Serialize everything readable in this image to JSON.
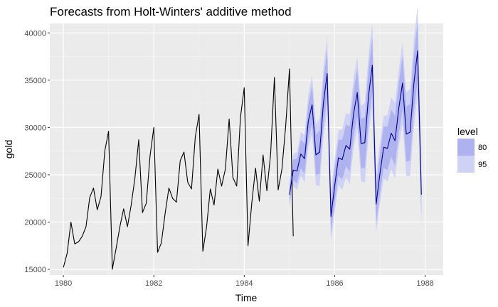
{
  "chart_data": {
    "type": "line",
    "title": "Forecasts from Holt-Winters' additive method",
    "xlabel": "Time",
    "ylabel": "gold",
    "xlim": [
      1979.7,
      1988.4
    ],
    "ylim": [
      14400,
      41000
    ],
    "x_ticks": [
      1980,
      1982,
      1984,
      1986,
      1988
    ],
    "y_ticks": [
      15000,
      20000,
      25000,
      30000,
      35000,
      40000
    ],
    "x_tick_labels": [
      "1980",
      "1982",
      "1984",
      "1986",
      "1988"
    ],
    "y_tick_labels": [
      "15000",
      "20000",
      "25000",
      "30000",
      "35000",
      "40000"
    ],
    "grid": true,
    "legend": {
      "title": "level",
      "position": "right",
      "entries": [
        {
          "label": "80",
          "color": "#aeb3f0"
        },
        {
          "label": "95",
          "color": "#cfd2f5"
        }
      ]
    },
    "colors": {
      "panel": "#ebebeb",
      "grid_major": "#ffffff",
      "observed_line": "#000000",
      "forecast_line": "#00008b",
      "band_80": "#aeb3f0",
      "band_95": "#cfd2f5"
    },
    "observed": {
      "start": 1980.0,
      "frequency": 12,
      "values": [
        15200,
        16700,
        20000,
        17700,
        17900,
        18500,
        19500,
        22600,
        23600,
        21300,
        22700,
        27500,
        29600,
        15000,
        17200,
        19500,
        21400,
        19500,
        21800,
        24700,
        28700,
        21000,
        22000,
        27000,
        30000,
        16800,
        17800,
        20900,
        23600,
        22500,
        22100,
        26500,
        27400,
        24200,
        23500,
        29000,
        31400,
        16900,
        19500,
        23500,
        21800,
        25600,
        23800,
        25600,
        30900,
        24700,
        23800,
        31100,
        34200,
        17500,
        22000,
        25700,
        22200,
        27100,
        23300,
        27200,
        35300,
        23400,
        25600,
        30200,
        36200,
        18500
      ]
    },
    "forecast": {
      "start": 1985.0,
      "frequency": 12,
      "mean": [
        22900,
        25500,
        25400,
        27200,
        26700,
        30700,
        32400,
        27100,
        27400,
        32600,
        35700,
        20600,
        23800,
        26800,
        26600,
        28100,
        27700,
        31400,
        33700,
        28300,
        28400,
        33400,
        36600,
        21900,
        25100,
        27900,
        27800,
        29400,
        28600,
        32000,
        34700,
        29300,
        29500,
        34600,
        38100,
        22900
      ],
      "lo80": [
        22000,
        24400,
        24100,
        25700,
        25100,
        28900,
        30400,
        25000,
        25100,
        30200,
        33200,
        18900,
        22000,
        24900,
        24500,
        25900,
        25300,
        29000,
        31200,
        25700,
        25700,
        30600,
        33700,
        19900,
        23000,
        25700,
        25500,
        26900,
        26000,
        29300,
        31900,
        26400,
        26500,
        31600,
        35000,
        20600
      ],
      "hi80": [
        23800,
        26600,
        26700,
        28700,
        28300,
        32500,
        34400,
        29200,
        29700,
        35000,
        38200,
        22300,
        25600,
        28700,
        28700,
        30300,
        30100,
        33800,
        36200,
        30900,
        31100,
        36200,
        39500,
        23900,
        27200,
        30100,
        30100,
        31900,
        31200,
        34700,
        37500,
        32200,
        32500,
        37600,
        41200,
        25200
      ],
      "lo95": [
        21500,
        23800,
        23400,
        24900,
        24200,
        27900,
        29300,
        23900,
        23800,
        28900,
        31800,
        18000,
        21000,
        23900,
        23400,
        24700,
        24000,
        27700,
        29900,
        24300,
        24200,
        29100,
        32200,
        18900,
        21900,
        24600,
        24300,
        25600,
        24600,
        27900,
        30400,
        24900,
        24900,
        30000,
        33400,
        19400
      ],
      "hi95": [
        24300,
        27200,
        27400,
        29500,
        29200,
        33500,
        35500,
        30300,
        31000,
        36300,
        39600,
        23200,
        26600,
        29700,
        29800,
        31500,
        31400,
        35100,
        37500,
        32300,
        32600,
        37700,
        41000,
        24900,
        28300,
        31200,
        31300,
        33200,
        32600,
        36100,
        39000,
        33700,
        34100,
        39200,
        42800,
        26400
      ]
    }
  }
}
